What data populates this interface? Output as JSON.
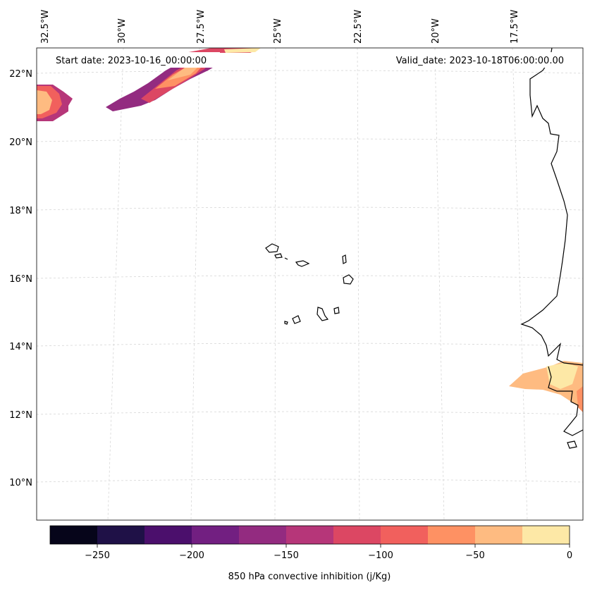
{
  "map": {
    "start_date": "Start date: 2023-10-16_00:00:00",
    "valid_date": "Valid_date: 2023-10-18T06:00:00.00",
    "lon_labels": [
      "32.5°W",
      "30°W",
      "27.5°W",
      "25°W",
      "22.5°W",
      "20°W",
      "17.5°W"
    ],
    "lat_labels": [
      "22°N",
      "20°N",
      "18°N",
      "16°N",
      "14°N",
      "12°N",
      "10°N"
    ],
    "extent": {
      "lon_min": -32.8,
      "lon_max": -16.1,
      "lat_min": 8.9,
      "lat_max": 22.8
    }
  },
  "colorbar": {
    "label": "850 hPa convective inhibition (j/Kg)",
    "levels": [
      -275,
      -250,
      -225,
      -200,
      -175,
      -150,
      -125,
      -100,
      -75,
      -50,
      -25,
      0
    ],
    "colors": [
      "#06051a",
      "#1f1147",
      "#4b0f6c",
      "#721f81",
      "#932b80",
      "#b63679",
      "#dc4763",
      "#f1605d",
      "#fe9163",
      "#febb81",
      "#fde8a6"
    ],
    "ticks": [
      "−250",
      "−200",
      "−150",
      "−100",
      "−50",
      "0"
    ]
  },
  "colors": {
    "coastline": "#000000",
    "gridline": "#d0d0d0"
  }
}
